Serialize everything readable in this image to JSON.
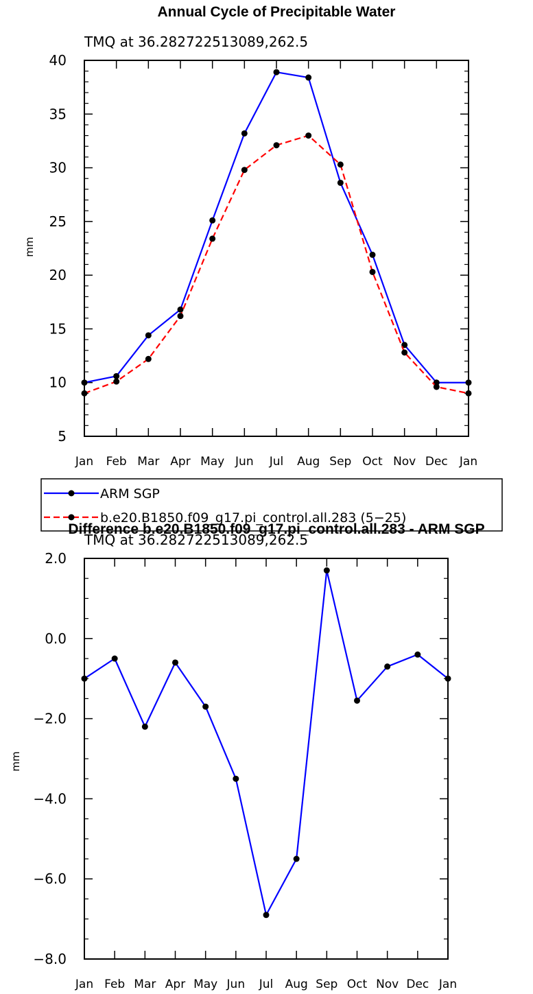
{
  "chart_data": [
    {
      "type": "line",
      "title": "Annual Cycle of Precipitable Water",
      "subtitle": "TMQ at 36.282722513089,262.5",
      "ylabel": "mm",
      "xlabel": "",
      "categories": [
        "Jan",
        "Feb",
        "Mar",
        "Apr",
        "May",
        "Jun",
        "Jul",
        "Aug",
        "Sep",
        "Oct",
        "Nov",
        "Dec",
        "Jan"
      ],
      "ylim": [
        5,
        40
      ],
      "yticks": [
        "5",
        "10",
        "15",
        "20",
        "25",
        "30",
        "35",
        "40"
      ],
      "series": [
        {
          "name": "ARM SGP",
          "color": "#0000ff",
          "dash": "solid",
          "values": [
            10.0,
            10.6,
            14.4,
            16.8,
            25.1,
            33.2,
            38.9,
            38.4,
            28.6,
            21.9,
            13.5,
            10.0,
            10.0
          ]
        },
        {
          "name": "b.e20.B1850.f09_g17.pi_control.all.283 (5-25)",
          "color": "#ff0000",
          "dash": "dashed",
          "values": [
            9.0,
            10.1,
            12.2,
            16.2,
            23.4,
            29.8,
            32.1,
            33.0,
            30.3,
            20.3,
            12.8,
            9.6,
            9.0
          ]
        }
      ],
      "legend_placement": "below"
    },
    {
      "type": "line",
      "title": "Difference b.e20.B1850.f09_g17.pi_control.all.283 - ARM SGP",
      "subtitle": "TMQ at 36.282722513089,262.5",
      "ylabel": "mm",
      "xlabel": "",
      "categories": [
        "Jan",
        "Feb",
        "Mar",
        "Apr",
        "May",
        "Jun",
        "Jul",
        "Aug",
        "Sep",
        "Oct",
        "Nov",
        "Dec",
        "Jan"
      ],
      "ylim": [
        -8.0,
        2.0
      ],
      "yticks": [
        "-8.0",
        "-6.0",
        "-4.0",
        "-2.0",
        "0.0",
        "2.0"
      ],
      "series": [
        {
          "color": "#0000ff",
          "dash": "solid",
          "values": [
            -1.0,
            -0.5,
            -2.2,
            -0.6,
            -1.7,
            -3.5,
            -6.9,
            -5.5,
            1.7,
            -1.55,
            -0.7,
            -0.4,
            -1.0
          ]
        }
      ]
    }
  ]
}
